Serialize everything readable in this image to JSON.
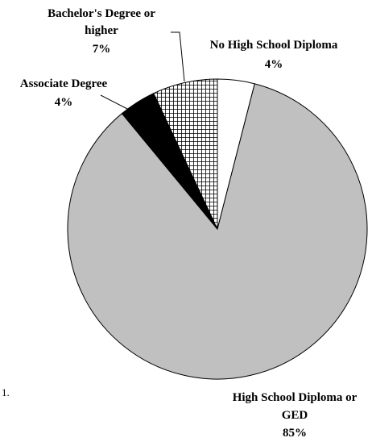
{
  "chart_data": {
    "type": "pie",
    "start_angle": "12 o'clock",
    "direction": "clockwise",
    "slices": [
      {
        "label": "No High School Diploma",
        "value": 4,
        "value_text": "4%",
        "fill": "#ffffff",
        "pattern": "none"
      },
      {
        "label": "High School Diploma or GED",
        "value": 85,
        "value_text": "85%",
        "fill": "#c0c0c0",
        "pattern": "none"
      },
      {
        "label": "Associate Degree",
        "value": 4,
        "value_text": "4%",
        "fill": "#000000",
        "pattern": "none"
      },
      {
        "label": "Bachelor's Degree or higher",
        "value": 7,
        "value_text": "7%",
        "fill": "#ffffff",
        "pattern": "crosshatch"
      }
    ],
    "legend": "none",
    "outline_color": "#000000"
  },
  "labels": {
    "no_hs_line1": "No High School Diploma",
    "no_hs_value": "4%",
    "hs_line1": "High School Diploma or",
    "hs_line2": "GED",
    "hs_value": "85%",
    "assoc_line1": "Associate Degree",
    "assoc_value": "4%",
    "bach_line1": "Bachelor's Degree or",
    "bach_line2": "higher",
    "bach_value": "7%"
  },
  "stray_mark": "1."
}
